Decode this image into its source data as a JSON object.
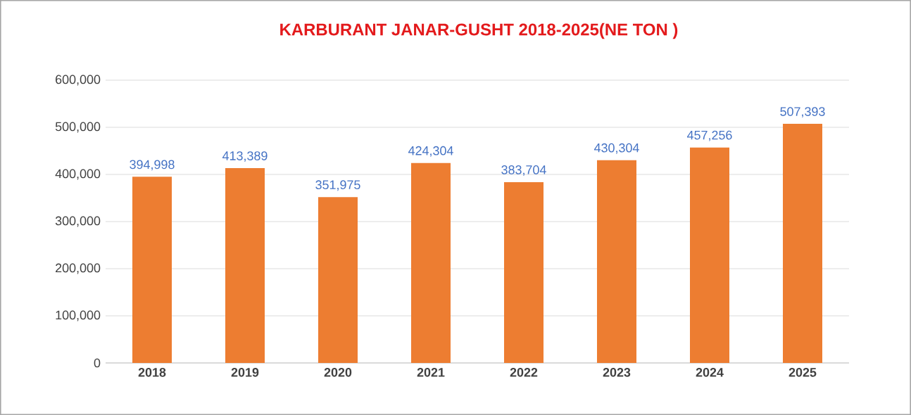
{
  "chart_data": {
    "type": "bar",
    "title": "KARBURANT JANAR-GUSHT 2018-2025(NE TON )",
    "categories": [
      "2018",
      "2019",
      "2020",
      "2021",
      "2022",
      "2023",
      "2024",
      "2025"
    ],
    "values": [
      394998,
      413389,
      351975,
      424304,
      383704,
      430304,
      457256,
      507393
    ],
    "color": "#ed7d31",
    "ylim": [
      0,
      600000
    ],
    "yticks": [
      {
        "value": 0,
        "label": "0"
      },
      {
        "value": 100000,
        "label": "100,000"
      },
      {
        "value": 200000,
        "label": "200,000"
      },
      {
        "value": 300000,
        "label": "300,000"
      },
      {
        "value": 400000,
        "label": "400,000"
      },
      {
        "value": 500000,
        "label": "500,000"
      },
      {
        "value": 600000,
        "label": "600,000"
      }
    ],
    "value_labels": [
      "394,998",
      "413,389",
      "351,975",
      "424,304",
      "383,704",
      "430,304",
      "457,256",
      "507,393"
    ],
    "grid": "y"
  }
}
